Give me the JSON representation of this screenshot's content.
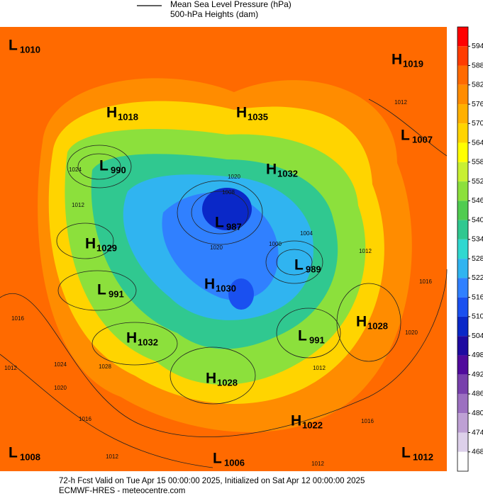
{
  "legend": [
    "Mean Sea Level Pressure (hPa)",
    "500-hPa Heights (dam)"
  ],
  "centers": [
    {
      "kind": "L",
      "value": 1010
    },
    {
      "kind": "H",
      "value": 1019
    },
    {
      "kind": "H",
      "value": 1018
    },
    {
      "kind": "H",
      "value": 1035
    },
    {
      "kind": "L",
      "value": 1007
    },
    {
      "kind": "L",
      "value": 990
    },
    {
      "kind": "H",
      "value": 1032
    },
    {
      "kind": "L",
      "value": 987
    },
    {
      "kind": "H",
      "value": 1029
    },
    {
      "kind": "L",
      "value": 989
    },
    {
      "kind": "L",
      "value": 991
    },
    {
      "kind": "H",
      "value": 1030
    },
    {
      "kind": "H",
      "value": 1028
    },
    {
      "kind": "H",
      "value": 1032
    },
    {
      "kind": "L",
      "value": 991
    },
    {
      "kind": "H",
      "value": 1028
    },
    {
      "kind": "H",
      "value": 1022
    },
    {
      "kind": "L",
      "value": 1008
    },
    {
      "kind": "L",
      "value": 1006
    },
    {
      "kind": "L",
      "value": 1012
    }
  ],
  "isobar_labels": [
    1012,
    1024,
    1012,
    1020,
    1008,
    1004,
    1012,
    1016,
    1020,
    1016,
    1012,
    1024,
    1028,
    1020,
    1016,
    1012,
    1012,
    1016,
    1012,
    1020,
    1000
  ],
  "colorbar": {
    "levels": [
      594,
      588,
      582,
      576,
      570,
      564,
      558,
      552,
      546,
      540,
      534,
      528,
      522,
      516,
      510,
      504,
      498,
      492,
      486,
      480,
      474,
      468
    ],
    "colors": [
      "#ff0000",
      "#ff3c00",
      "#ff6a00",
      "#ff8c00",
      "#ffb000",
      "#ffd400",
      "#ffff00",
      "#c8f032",
      "#8ce03c",
      "#50cc50",
      "#30c890",
      "#30d8d0",
      "#30b4f0",
      "#3080ff",
      "#1a50f0",
      "#0a28c8",
      "#1e0aa0",
      "#500a9c",
      "#7840ac",
      "#9c70c0",
      "#bea0d4",
      "#ddd0ea",
      "#ffffff"
    ]
  },
  "footer": [
    "72-h Fcst Valid on Tue Apr 15 00:00:00 2025, Initialized on Sat Apr 12 00:00:00 2025",
    "ECMWF-HRES - meteocentre.com"
  ]
}
